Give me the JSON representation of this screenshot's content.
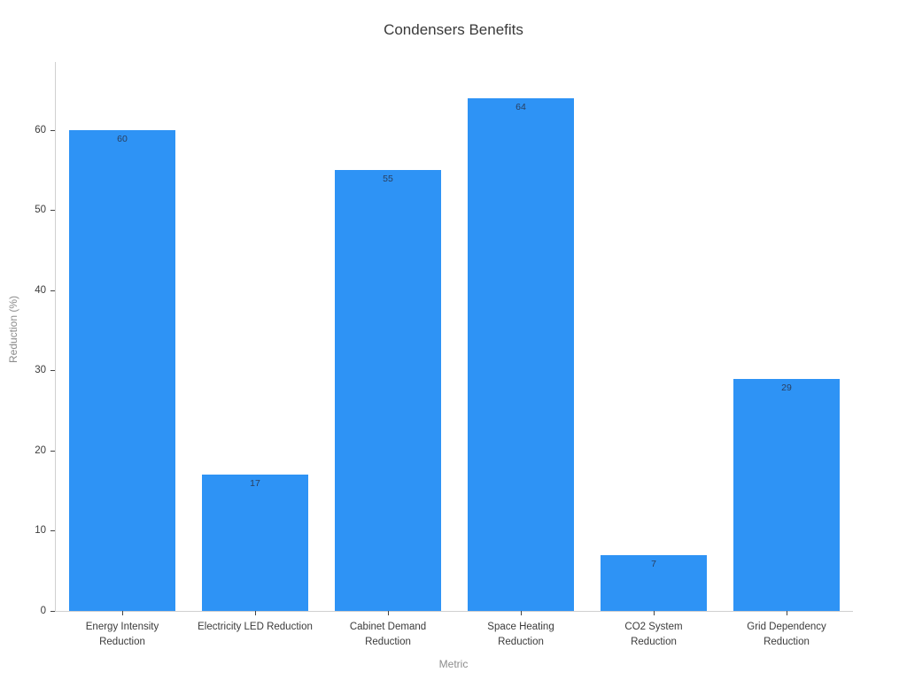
{
  "chart_data": {
    "type": "bar",
    "title": "Condensers Benefits",
    "xlabel": "Metric",
    "ylabel": "Reduction (%)",
    "categories": [
      "Energy Intensity\nReduction",
      "Electricity LED Reduction",
      "Cabinet Demand\nReduction",
      "Space Heating\nReduction",
      "CO2 System\nReduction",
      "Grid Dependency\nReduction"
    ],
    "values": [
      60,
      17,
      55,
      64,
      7,
      29
    ],
    "yticks": [
      0,
      10,
      20,
      30,
      40,
      50,
      60
    ],
    "ylim": [
      0,
      68.5
    ],
    "grid": false,
    "legend_position": "none",
    "bar_width_fraction": 0.805,
    "colors": {
      "background": "#ffffff",
      "bar": "#2E93F5",
      "value_label": "#2a3f5f",
      "tick_label": "#3b3b3b",
      "axis_title": "#8c8c8c",
      "title": "#3a3a3a",
      "spine": "#d0d0d0",
      "tick_mark": "#444444"
    }
  }
}
